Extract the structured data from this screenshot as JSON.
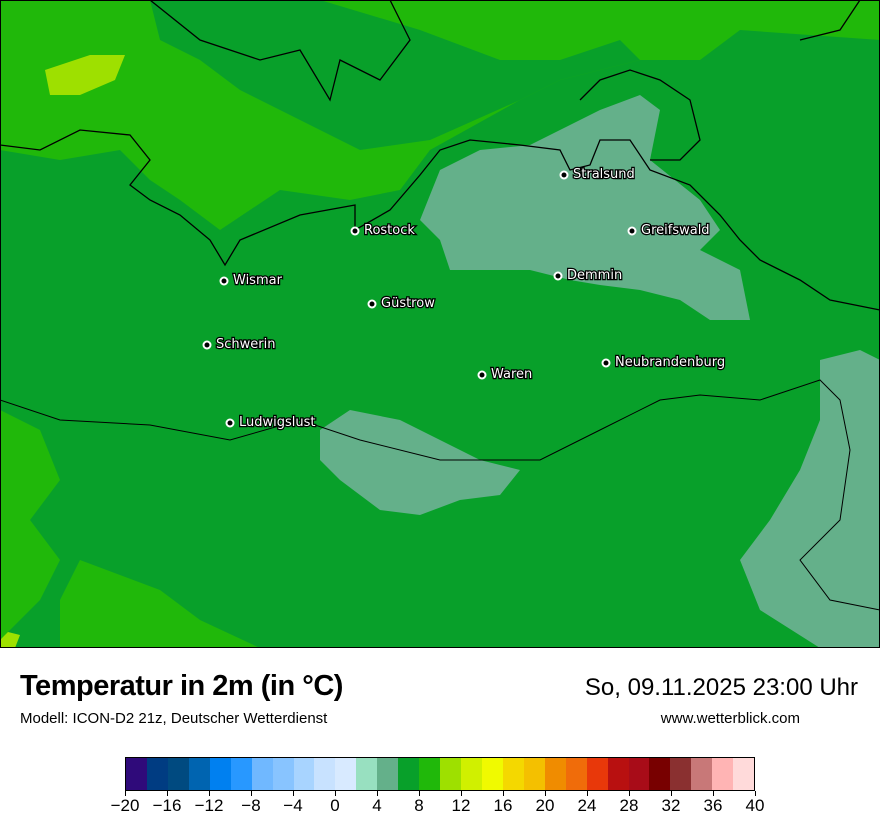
{
  "header": {
    "title": "Temperatur in 2m (in °C)",
    "subtitle": "Modell: ICON-D2 21z, Deutscher Wetterdienst",
    "datetime": "So, 09.11.2025 23:00 Uhr",
    "website": "www.wetterblick.com"
  },
  "map": {
    "dominant_value_range_c": [
      6,
      8
    ],
    "colors": {
      "base": "#08a02a",
      "warmer": "#20b80a",
      "warmest": "#9ee000",
      "cooler": "#64b08a",
      "coast": "#000000"
    },
    "cities": [
      {
        "name": "Stralsund"
      },
      {
        "name": "Rostock"
      },
      {
        "name": "Greifswald"
      },
      {
        "name": "Wismar"
      },
      {
        "name": "Demmin"
      },
      {
        "name": "Güstrow"
      },
      {
        "name": "Schwerin"
      },
      {
        "name": "Neubrandenburg"
      },
      {
        "name": "Waren"
      },
      {
        "name": "Ludwigslust"
      }
    ]
  },
  "legend": {
    "unit": "°C",
    "min": -20,
    "max": 40,
    "step": 2,
    "tick_labels": [
      "−20",
      "−16",
      "−12",
      "−8",
      "−4",
      "0",
      "4",
      "8",
      "12",
      "16",
      "20",
      "24",
      "28",
      "32",
      "36",
      "40"
    ],
    "colors": [
      "#2f0a7a",
      "#003c82",
      "#004a80",
      "#0064b0",
      "#0080f0",
      "#2898ff",
      "#70b8ff",
      "#88c4ff",
      "#a8d4ff",
      "#c8e2ff",
      "#d8eaff",
      "#98e0c0",
      "#64b08a",
      "#08a02a",
      "#20b80a",
      "#9ee000",
      "#d0f000",
      "#f0fa00",
      "#f4d800",
      "#f4c000",
      "#f08c00",
      "#f06c0a",
      "#e8380a",
      "#b81010",
      "#a80c18",
      "#780000",
      "#8a3030",
      "#c87878",
      "#ffb4b4",
      "#ffdada"
    ]
  }
}
